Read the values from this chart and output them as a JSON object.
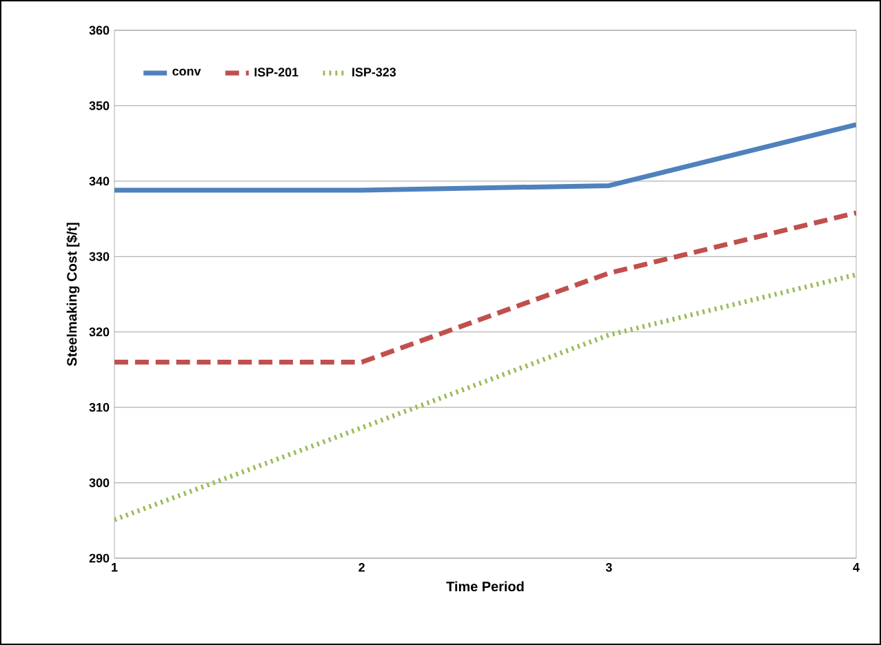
{
  "chart_data": {
    "type": "line",
    "xlabel": "Time Period",
    "ylabel": "Steelmaking  Cost [$/t]",
    "x": [
      1,
      2,
      3,
      4
    ],
    "xlim": [
      1,
      4
    ],
    "xticks": [
      1,
      2,
      3,
      4
    ],
    "ylim": [
      290,
      360
    ],
    "yticks": [
      290,
      300,
      310,
      320,
      330,
      340,
      350,
      360
    ],
    "grid": "y",
    "legend": "top left",
    "marker": "none",
    "series": [
      {
        "name": "conv",
        "color": "#4f81bd",
        "line_style": "solid",
        "values": [
          338.8,
          338.8,
          339.4,
          347.5
        ]
      },
      {
        "name": "ISP-201",
        "color": "#c0504d",
        "line_style": "dashed",
        "values": [
          316,
          316,
          327.8,
          335.8
        ]
      },
      {
        "name": "ISP-323",
        "color": "#9bbb59",
        "line_style": "dotted",
        "values": [
          295.1,
          307.3,
          319.6,
          327.6
        ]
      }
    ]
  }
}
